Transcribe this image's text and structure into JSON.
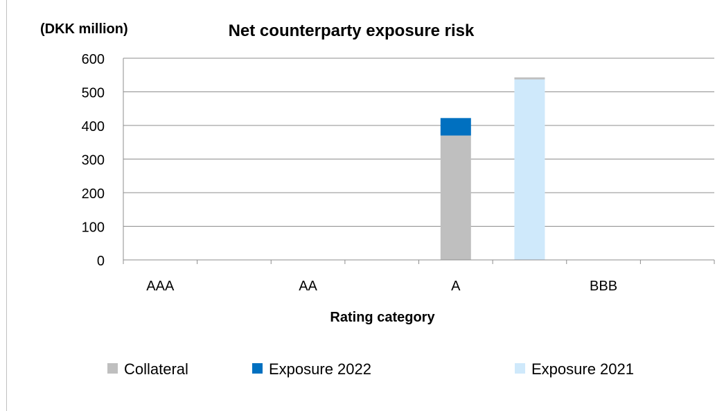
{
  "chart_data": {
    "type": "bar",
    "stacked": true,
    "title": "Net counterparty exposure risk",
    "unit_label": "(DKK million)",
    "xlabel": "Rating category",
    "categories": [
      "AAA",
      "AA",
      "A",
      "BBB"
    ],
    "ylim": [
      0,
      600
    ],
    "yticks": [
      0,
      100,
      200,
      300,
      400,
      500,
      600
    ],
    "grid": true,
    "legend_position": "bottom",
    "groups": [
      "2022",
      "2021"
    ],
    "series": [
      {
        "name": "Collateral",
        "group": "2022",
        "color": "#bfbfbf",
        "values": [
          0,
          0,
          370,
          0
        ]
      },
      {
        "name": "Exposure 2022",
        "group": "2022",
        "color": "#0070c0",
        "values": [
          0,
          0,
          52,
          0
        ]
      },
      {
        "name": "Collateral",
        "group": "2021",
        "color": "#bfbfbf",
        "values": [
          0,
          0,
          0,
          0
        ]
      },
      {
        "name": "Exposure 2021",
        "group": "2021",
        "color": "#cfe9fb",
        "values": [
          0,
          0,
          537,
          0
        ]
      },
      {
        "name": "Collateral",
        "group": "2021-top",
        "color": "#bfbfbf",
        "values": [
          0,
          0,
          6,
          0
        ]
      }
    ],
    "legend": [
      {
        "label": "Collateral",
        "color": "#bfbfbf"
      },
      {
        "label": "Exposure 2022",
        "color": "#0070c0"
      },
      {
        "label": "Exposure 2021",
        "color": "#cfe9fb"
      }
    ]
  }
}
